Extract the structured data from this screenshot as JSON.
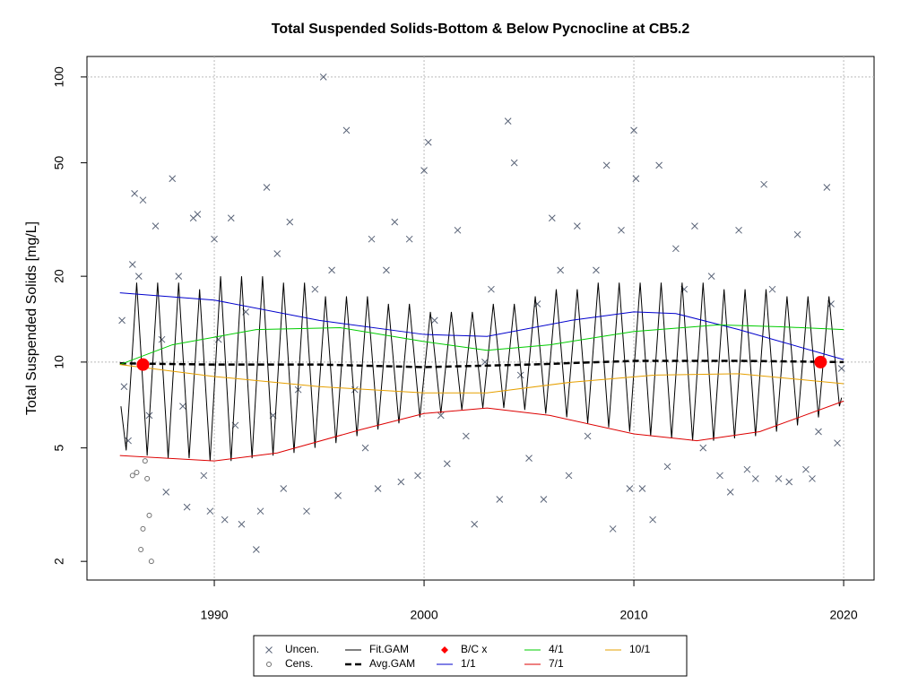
{
  "chart_data": {
    "type": "scatter",
    "title": "Total Suspended Solids-Bottom & Below Pycnocline at CB5.2",
    "y_label": "Total Suspended Solids [mg/L]",
    "xlim": [
      1983.93,
      2021.45
    ],
    "xticks": [
      1990,
      2000,
      2010,
      2020
    ],
    "ylim": [
      1.72,
      118
    ],
    "yticks": [
      2,
      5,
      10,
      20,
      50,
      100
    ],
    "log_y": true,
    "grid_x": true,
    "grid_y": [
      10,
      100
    ],
    "legend": "bottom",
    "series": [
      {
        "name": "Uncen.",
        "kind": "scatter",
        "marker": "x",
        "color": "#5a6478",
        "x": [
          1985.6,
          1985.7,
          1985.9,
          1986.1,
          1986.2,
          1986.4,
          1986.6,
          1986.9,
          1987.2,
          1987.5,
          1987.7,
          1988,
          1988.3,
          1988.5,
          1988.7,
          1989,
          1989.2,
          1989.5,
          1989.8,
          1990,
          1990.2,
          1990.5,
          1990.8,
          1991,
          1991.3,
          1991.5,
          1992,
          1992.2,
          1992.5,
          1992.8,
          1993,
          1993.3,
          1993.6,
          1994,
          1994.4,
          1994.8,
          1995.2,
          1995.6,
          1995.9,
          1996.3,
          1996.7,
          1997.2,
          1997.5,
          1997.8,
          1998.2,
          1998.6,
          1998.9,
          1999.3,
          1999.7,
          2000,
          2000.2,
          2000.5,
          2000.8,
          2001.1,
          2001.6,
          2002,
          2002.4,
          2002.9,
          2003.2,
          2003.6,
          2004,
          2004.3,
          2004.6,
          2005,
          2005.4,
          2005.7,
          2006.1,
          2006.5,
          2006.9,
          2007.3,
          2007.8,
          2008.2,
          2008.7,
          2009,
          2009.4,
          2009.8,
          2010,
          2010.1,
          2010.4,
          2010.9,
          2011.2,
          2011.6,
          2012,
          2012.4,
          2012.9,
          2013.3,
          2013.7,
          2014.1,
          2014.6,
          2015,
          2015.4,
          2015.8,
          2016.2,
          2016.6,
          2016.9,
          2017.4,
          2017.8,
          2018.2,
          2018.5,
          2018.8,
          2019.2,
          2019.4,
          2019.7,
          2019.9
        ],
        "values": [
          14,
          8.2,
          5.3,
          22,
          39,
          20,
          37,
          6.5,
          30,
          12,
          3.5,
          44,
          20,
          7,
          3.1,
          32,
          33,
          4,
          3.0,
          27,
          12,
          2.8,
          32,
          6,
          2.7,
          15,
          2.2,
          3.0,
          41,
          6.5,
          24,
          3.6,
          31,
          8,
          3.0,
          18,
          100,
          21,
          3.4,
          65,
          8,
          5,
          27,
          3.6,
          21,
          31,
          3.8,
          27,
          4.0,
          47,
          59,
          14,
          6.5,
          4.4,
          29,
          5.5,
          2.7,
          10,
          18,
          3.3,
          70,
          50,
          9,
          4.6,
          16,
          3.3,
          32,
          21,
          4.0,
          30,
          5.5,
          21,
          49,
          2.6,
          29,
          3.6,
          65,
          44,
          3.6,
          2.8,
          49,
          4.3,
          25,
          18,
          30,
          5.0,
          20,
          4.0,
          3.5,
          29,
          4.2,
          3.9,
          42,
          18,
          3.9,
          3.8,
          28,
          4.2,
          3.9,
          5.7,
          41,
          16,
          5.2,
          9.5
        ]
      },
      {
        "name": "Cens.",
        "kind": "scatter",
        "marker": "o",
        "color": "#707070",
        "x": [
          1986.1,
          1986.3,
          1986.5,
          1986.6,
          1986.7,
          1986.8,
          1986.9,
          1987.0
        ],
        "values": [
          4.0,
          4.1,
          2.2,
          2.6,
          4.5,
          3.9,
          2.9,
          2.0
        ]
      },
      {
        "name": "Fit.GAM",
        "kind": "line",
        "color": "#000000",
        "width": 1,
        "x": [
          1985.55,
          1985.8,
          1986.3,
          1986.8,
          1987.3,
          1987.8,
          1988.3,
          1988.8,
          1989.3,
          1989.8,
          1990.3,
          1990.8,
          1991.3,
          1991.8,
          1992.3,
          1992.8,
          1993.3,
          1993.8,
          1994.3,
          1994.8,
          1995.3,
          1995.8,
          1996.3,
          1996.8,
          1997.3,
          1997.8,
          1998.3,
          1998.8,
          1999.3,
          1999.8,
          2000.3,
          2000.8,
          2001.3,
          2001.8,
          2002.3,
          2002.8,
          2003.3,
          2003.8,
          2004.3,
          2004.8,
          2005.3,
          2005.8,
          2006.3,
          2006.8,
          2007.3,
          2007.8,
          2008.3,
          2008.8,
          2009.3,
          2009.8,
          2010.3,
          2010.8,
          2011.3,
          2011.8,
          2012.3,
          2012.8,
          2013.3,
          2013.8,
          2014.3,
          2014.8,
          2015.3,
          2015.8,
          2016.3,
          2016.8,
          2017.3,
          2017.8,
          2018.3,
          2018.8,
          2019.3,
          2019.8,
          2019.9
        ],
        "values": [
          7.0,
          4.9,
          19,
          4.7,
          19,
          4.6,
          19,
          4.6,
          18,
          4.5,
          20,
          4.5,
          20,
          4.6,
          20,
          4.7,
          19,
          4.8,
          19,
          5,
          17,
          5.2,
          17,
          5.5,
          17,
          5.8,
          16,
          6.1,
          16,
          6.4,
          15,
          6.6,
          15,
          6.8,
          15,
          6.9,
          16,
          6.9,
          16,
          6.8,
          17,
          6.6,
          18,
          6.4,
          18,
          6.1,
          19,
          5.9,
          19,
          5.7,
          19,
          5.5,
          19,
          5.4,
          19,
          5.3,
          19,
          5.3,
          18,
          5.4,
          18,
          5.5,
          18,
          5.7,
          17,
          6.0,
          17,
          6.4,
          17,
          7.0,
          7.5
        ]
      },
      {
        "name": "Avg.GAM",
        "kind": "line",
        "color": "#000000",
        "width": 2.5,
        "dash": "7,4",
        "x": [
          1985.5,
          1990,
          1995,
          2000,
          2005,
          2010,
          2015,
          2020
        ],
        "values": [
          9.9,
          9.8,
          9.8,
          9.6,
          9.8,
          10.1,
          10.1,
          10
        ]
      },
      {
        "name": "B/C x",
        "kind": "scatter",
        "marker": "dot",
        "color": "#ff0000",
        "x": [
          1986.6,
          2018.9
        ],
        "values": [
          9.8,
          10
        ]
      },
      {
        "name": "1/1",
        "kind": "line",
        "color": "#0000cc",
        "width": 1,
        "x": [
          1985.5,
          1990,
          1995,
          2000,
          2003,
          2007,
          2010,
          2012,
          2015,
          2020
        ],
        "values": [
          17.5,
          16.5,
          14,
          12.5,
          12.3,
          14,
          15,
          14.8,
          13,
          10.2
        ]
      },
      {
        "name": "4/1",
        "kind": "line",
        "color": "#00cc00",
        "width": 1,
        "x": [
          1985.5,
          1988,
          1992,
          1996,
          2000,
          2003,
          2006,
          2010,
          2014,
          2017,
          2020
        ],
        "values": [
          9.8,
          11.5,
          13,
          13.2,
          11.8,
          11,
          11.5,
          12.8,
          13.5,
          13.3,
          13
        ]
      },
      {
        "name": "7/1",
        "kind": "line",
        "color": "#dd0000",
        "width": 1,
        "x": [
          1985.5,
          1990,
          1993,
          1997,
          2000,
          2003,
          2006,
          2010,
          2013,
          2016,
          2020
        ],
        "values": [
          4.7,
          4.5,
          4.8,
          5.8,
          6.6,
          6.9,
          6.5,
          5.6,
          5.3,
          5.7,
          7.3
        ]
      },
      {
        "name": "10/1",
        "kind": "line",
        "color": "#e6a000",
        "width": 1,
        "x": [
          1985.5,
          1990,
          1995,
          2000,
          2003,
          2007,
          2011,
          2015,
          2020
        ],
        "values": [
          9.8,
          8.9,
          8.2,
          7.8,
          7.8,
          8.5,
          9.0,
          9.1,
          8.4
        ]
      }
    ]
  }
}
